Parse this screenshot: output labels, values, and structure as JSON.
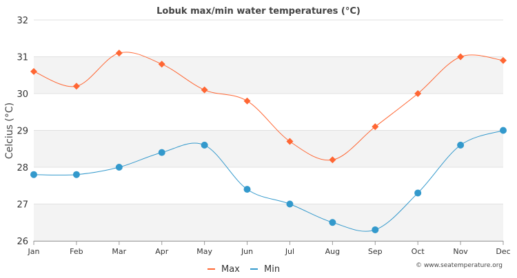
{
  "chart_data": {
    "type": "line",
    "title": "Lobuk max/min water temperatures (°C)",
    "ylabel": "Celcius (°C)",
    "xlabel": "",
    "categories": [
      "Jan",
      "Feb",
      "Mar",
      "Apr",
      "May",
      "Jun",
      "Jul",
      "Aug",
      "Sep",
      "Oct",
      "Nov",
      "Dec"
    ],
    "ylim": [
      26,
      32
    ],
    "yticks": [
      26,
      27,
      28,
      29,
      30,
      31,
      32
    ],
    "grid": true,
    "legend_position": "bottom",
    "series": [
      {
        "name": "Max",
        "color": "#ff6633",
        "marker": "diamond",
        "values": [
          30.6,
          30.2,
          31.1,
          30.8,
          30.1,
          29.8,
          28.7,
          28.2,
          29.1,
          30.0,
          31.0,
          30.9
        ]
      },
      {
        "name": "Min",
        "color": "#3399cc",
        "marker": "circle",
        "values": [
          27.8,
          27.8,
          28.0,
          28.4,
          28.6,
          27.4,
          27.0,
          26.5,
          26.3,
          27.3,
          28.6,
          29.0
        ]
      }
    ]
  },
  "credit": "© www.seatemperature.org"
}
